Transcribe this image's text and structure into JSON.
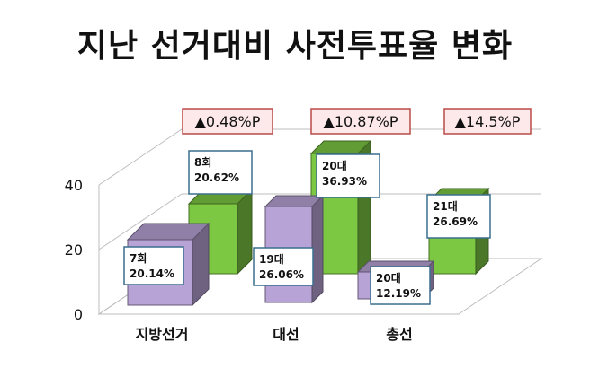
{
  "title": "지난 선거대비 사전투표율 변화",
  "chart_data": {
    "type": "bar",
    "subtype": "3d-clustered",
    "categories": [
      "지방선거",
      "대선",
      "총선"
    ],
    "ylim": [
      0,
      40
    ],
    "yticks": [
      0,
      20,
      40
    ],
    "grid": true,
    "series": [
      {
        "color": "#b8a3d6",
        "values": [
          20.14,
          26.06,
          12.19
        ],
        "labels": [
          [
            "7회",
            "20.14%"
          ],
          [
            "19대",
            "26.06%"
          ],
          [
            "20대",
            "12.19%"
          ]
        ]
      },
      {
        "color": "#7dc843",
        "values": [
          20.62,
          36.93,
          26.69
        ],
        "labels": [
          [
            "8회",
            "20.62%"
          ],
          [
            "20대",
            "36.93%"
          ],
          [
            "21대",
            "26.69%"
          ]
        ]
      }
    ],
    "change_labels": [
      "▲0.48%P",
      "▲10.87%P",
      "▲14.5%P"
    ]
  }
}
